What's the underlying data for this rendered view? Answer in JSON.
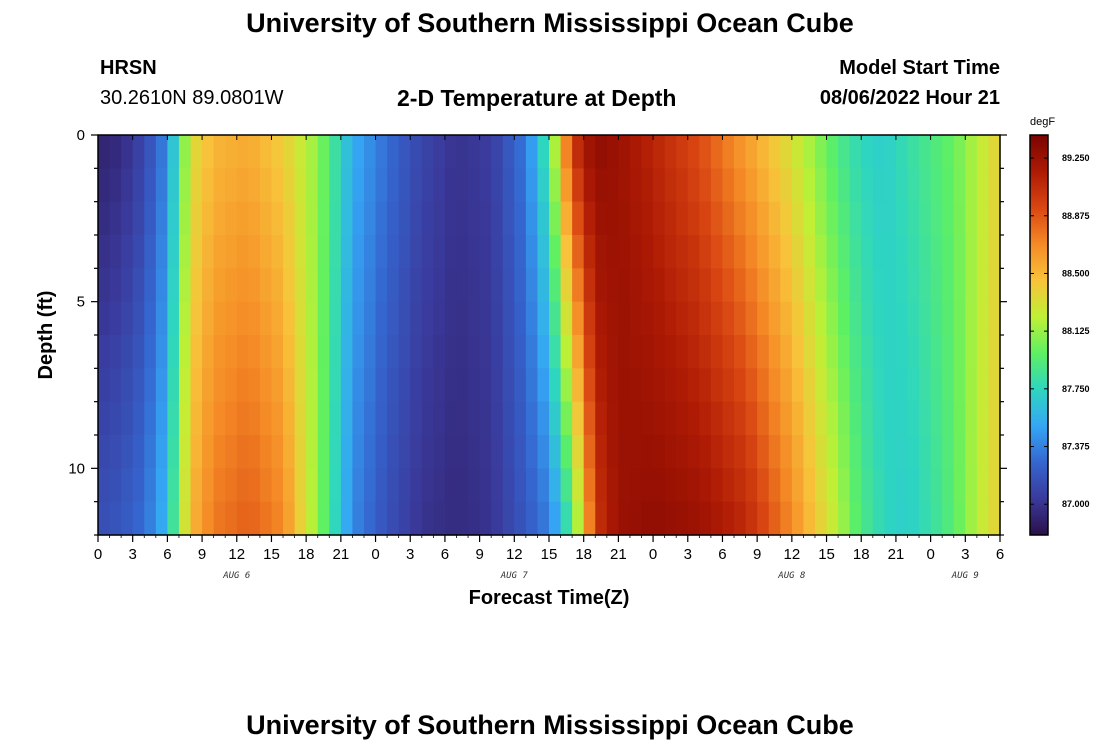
{
  "header": {
    "title": "University of Southern Mississippi Ocean Cube",
    "station": "HRSN",
    "coords": "30.2610N  89.0801W",
    "chart_title": "2-D Temperature at Depth",
    "model_label": "Model Start Time",
    "model_time": "08/06/2022 Hour 21"
  },
  "footer": {
    "title": "University of Southern Mississippi Ocean Cube"
  },
  "chart_data": {
    "type": "heatmap",
    "title": "2-D Temperature at Depth",
    "xlabel": "Forecast Time(Z)",
    "ylabel": "Depth (ft)",
    "x_tick_labels": [
      "0",
      "3",
      "6",
      "9",
      "12",
      "15",
      "18",
      "21",
      "0",
      "3",
      "6",
      "9",
      "12",
      "15",
      "18",
      "21",
      "0",
      "3",
      "6",
      "9",
      "12",
      "15",
      "18",
      "21",
      "0",
      "3",
      "6"
    ],
    "x_date_labels": [
      {
        "label": "AUG 6",
        "hour": 12
      },
      {
        "label": "AUG 7",
        "hour": 36
      },
      {
        "label": "AUG 8",
        "hour": 60
      },
      {
        "label": "AUG 9",
        "hour": 75
      }
    ],
    "x_range_hours": [
      0,
      78
    ],
    "y_ticks": [
      0,
      5,
      10
    ],
    "y_range": [
      0,
      12
    ],
    "y_inverted": true,
    "colorbar": {
      "unit": "degF",
      "min": 86.8,
      "max": 89.4,
      "tick_labels": [
        "89.250",
        "88.875",
        "88.500",
        "88.125",
        "87.750",
        "87.375",
        "87.000"
      ],
      "colors": [
        "#2b1048",
        "#3a3a9c",
        "#3566d0",
        "#35a6f4",
        "#2ed6c0",
        "#5ef063",
        "#c0f035",
        "#f8c33a",
        "#f58a26",
        "#d94612",
        "#ad1a04",
        "#7a0402"
      ]
    },
    "time_step_hours": 1,
    "depth_levels_ft": [
      0,
      1,
      2,
      3,
      4,
      5,
      6,
      7,
      8,
      9,
      10,
      11,
      12
    ],
    "time_anchor_hours": [
      0,
      2,
      4,
      6,
      7,
      8,
      10,
      13,
      16,
      19,
      22,
      25,
      28,
      31,
      34,
      37,
      39,
      40,
      41,
      42,
      43,
      45,
      48,
      52,
      56,
      60,
      64,
      66,
      68,
      70,
      72,
      74,
      76,
      78
    ],
    "surface_temps_degF": [
      86.9,
      86.95,
      87.1,
      87.4,
      87.9,
      88.3,
      88.5,
      88.55,
      88.4,
      88.1,
      87.55,
      87.3,
      87.1,
      87.0,
      87.05,
      87.35,
      87.9,
      88.5,
      89.0,
      89.2,
      89.3,
      89.25,
      89.1,
      88.9,
      88.6,
      88.3,
      87.9,
      87.75,
      87.7,
      87.8,
      87.9,
      88.0,
      88.2,
      88.4
    ],
    "bottom_temps_degF": [
      87.15,
      87.2,
      87.3,
      87.6,
      88.1,
      88.5,
      88.75,
      88.85,
      88.7,
      88.1,
      87.4,
      87.15,
      87.0,
      86.95,
      87.0,
      87.2,
      87.35,
      87.6,
      87.9,
      88.4,
      89.0,
      89.25,
      89.3,
      89.25,
      89.1,
      88.7,
      88.2,
      87.9,
      87.75,
      87.7,
      87.8,
      87.95,
      88.2,
      88.4
    ]
  }
}
